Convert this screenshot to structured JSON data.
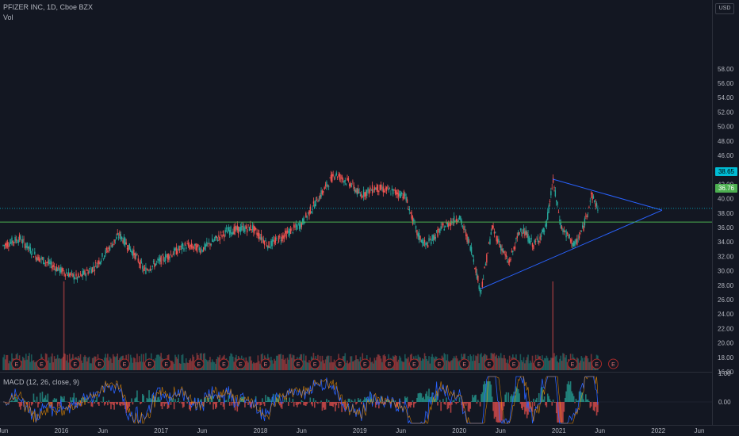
{
  "header": {
    "title": "PFIZER INC, 1D, Cboe BZX",
    "volume_label": "Vol",
    "currency": "USD"
  },
  "price_axis": {
    "ticks": [
      "58.00",
      "56.00",
      "54.00",
      "52.00",
      "50.00",
      "48.00",
      "46.00",
      "44.00",
      "42.00",
      "40.00",
      "38.00",
      "36.00",
      "34.00",
      "32.00",
      "30.00",
      "28.00",
      "26.00",
      "24.00",
      "22.00",
      "20.00",
      "18.00",
      "16.00"
    ],
    "last_price": "38.65",
    "level_price": "36.76"
  },
  "macd": {
    "label": "MACD (12, 26, close, 9)",
    "axis_top": "1.00",
    "axis_zero": "0.00"
  },
  "time_axis": [
    "Jun",
    "2016",
    "Jun",
    "2017",
    "Jun",
    "2018",
    "Jun",
    "2019",
    "Jun",
    "2020",
    "Jun",
    "2021",
    "Jun",
    "2022",
    "Jun"
  ],
  "earnings_marker": "E",
  "colors": {
    "background": "#131722",
    "up": "#26a69a",
    "down": "#ef5350",
    "trendline": "#2962ff",
    "level_line": "#4caf50",
    "last_line": "#00bcd4",
    "earnings": "#a52a2a"
  },
  "chart_data": {
    "type": "candlestick",
    "symbol": "PFIZER INC",
    "interval": "1D",
    "exchange": "Cboe BZX",
    "x_range": [
      "2015-06",
      "2022-06"
    ],
    "ylim": [
      15.5,
      59
    ],
    "price_path": [
      {
        "date": "2015-06-01",
        "close": 33.5
      },
      {
        "date": "2015-08-01",
        "close": 34.5
      },
      {
        "date": "2015-10-01",
        "close": 32.0
      },
      {
        "date": "2016-01-01",
        "close": 30.0
      },
      {
        "date": "2016-03-01",
        "close": 29.0
      },
      {
        "date": "2016-05-01",
        "close": 30.5
      },
      {
        "date": "2016-08-01",
        "close": 35.0
      },
      {
        "date": "2016-10-01",
        "close": 32.0
      },
      {
        "date": "2016-11-01",
        "close": 30.0
      },
      {
        "date": "2017-01-01",
        "close": 31.5
      },
      {
        "date": "2017-04-01",
        "close": 33.5
      },
      {
        "date": "2017-06-01",
        "close": 33.0
      },
      {
        "date": "2017-09-01",
        "close": 35.5
      },
      {
        "date": "2017-12-01",
        "close": 36.0
      },
      {
        "date": "2018-02-01",
        "close": 33.5
      },
      {
        "date": "2018-04-01",
        "close": 35.0
      },
      {
        "date": "2018-06-01",
        "close": 36.5
      },
      {
        "date": "2018-08-01",
        "close": 40.0
      },
      {
        "date": "2018-10-01",
        "close": 43.5
      },
      {
        "date": "2018-12-01",
        "close": 42.0
      },
      {
        "date": "2019-01-01",
        "close": 40.5
      },
      {
        "date": "2019-03-01",
        "close": 41.5
      },
      {
        "date": "2019-05-01",
        "close": 41.0
      },
      {
        "date": "2019-06-15",
        "close": 40.5
      },
      {
        "date": "2019-08-01",
        "close": 35.0
      },
      {
        "date": "2019-09-01",
        "close": 33.5
      },
      {
        "date": "2019-11-01",
        "close": 36.0
      },
      {
        "date": "2020-01-01",
        "close": 37.5
      },
      {
        "date": "2020-02-15",
        "close": 33.0
      },
      {
        "date": "2020-03-20",
        "close": 27.0
      },
      {
        "date": "2020-05-01",
        "close": 36.0
      },
      {
        "date": "2020-07-01",
        "close": 31.0
      },
      {
        "date": "2020-08-15",
        "close": 36.0
      },
      {
        "date": "2020-10-01",
        "close": 33.5
      },
      {
        "date": "2020-11-15",
        "close": 36.0
      },
      {
        "date": "2020-12-10",
        "close": 42.5
      },
      {
        "date": "2021-01-10",
        "close": 36.0
      },
      {
        "date": "2021-03-01",
        "close": 33.5
      },
      {
        "date": "2021-04-01",
        "close": 36.0
      },
      {
        "date": "2021-05-01",
        "close": 40.5
      },
      {
        "date": "2021-05-25",
        "close": 38.65
      }
    ],
    "earnings_dates": [
      "2015-07",
      "2015-10",
      "2016-02",
      "2016-05",
      "2016-08",
      "2016-11",
      "2017-01",
      "2017-05",
      "2017-08",
      "2017-10",
      "2018-01",
      "2018-05",
      "2018-07",
      "2018-10",
      "2019-01",
      "2019-04",
      "2019-07",
      "2019-10",
      "2020-01",
      "2020-04",
      "2020-07",
      "2020-10",
      "2021-02",
      "2021-05",
      "2021-07"
    ],
    "volume_spikes": [
      {
        "date": "2016-01",
        "value": "high"
      },
      {
        "date": "2020-12",
        "value": "high"
      }
    ],
    "trendlines": [
      {
        "name": "upper",
        "from": {
          "date": "2020-12-10",
          "price": 42.7
        },
        "to": {
          "date": "2022-01-15",
          "price": 38.4
        }
      },
      {
        "name": "lower",
        "from": {
          "date": "2020-03-20",
          "price": 27.5
        },
        "to": {
          "date": "2022-01-15",
          "price": 38.4
        }
      }
    ],
    "horizontal_levels": [
      {
        "price": 36.76
      },
      {
        "price": 38.65
      }
    ],
    "macd_params": "12, 26, close, 9"
  }
}
